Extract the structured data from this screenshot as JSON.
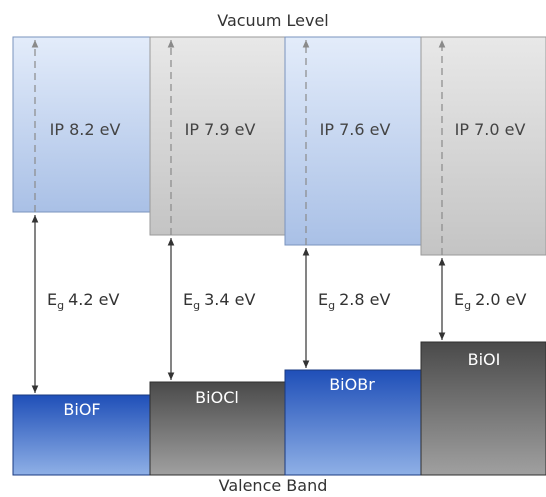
{
  "title_top": "Vacuum Level",
  "title_bottom": "Valence Band",
  "materials": [
    {
      "name": "BiOF",
      "ip": "IP 8.2 eV",
      "eg_symbol": "E",
      "eg_sub": "g",
      "eg_value": "4.2 eV",
      "cb_color": "blue",
      "vb_color": "blue"
    },
    {
      "name": "BiOCl",
      "ip": "IP 7.9 eV",
      "eg_symbol": "E",
      "eg_sub": "g",
      "eg_value": "3.4 eV",
      "cb_color": "gray",
      "vb_color": "gray"
    },
    {
      "name": "BiOBr",
      "ip": "IP 7.6 eV",
      "eg_symbol": "E",
      "eg_sub": "g",
      "eg_value": "2.8 eV",
      "cb_color": "blue",
      "vb_color": "blue"
    },
    {
      "name": "BiOI",
      "ip": "IP 7.0 eV",
      "eg_symbol": "E",
      "eg_sub": "g",
      "eg_value": "2.0 eV",
      "cb_color": "gray",
      "vb_color": "gray"
    }
  ],
  "colors": {
    "blue_cb_top": "#e3ecfa",
    "blue_cb_bottom": "#a9c0e6",
    "gray_cb_top": "#e8e8e8",
    "gray_cb_bottom": "#c4c4c4",
    "blue_vb_top": "#1f4fb8",
    "blue_vb_bottom": "#8fb0e6",
    "gray_vb_top": "#4a4a4a",
    "gray_vb_bottom": "#a0a0a0",
    "text": "#333333"
  }
}
